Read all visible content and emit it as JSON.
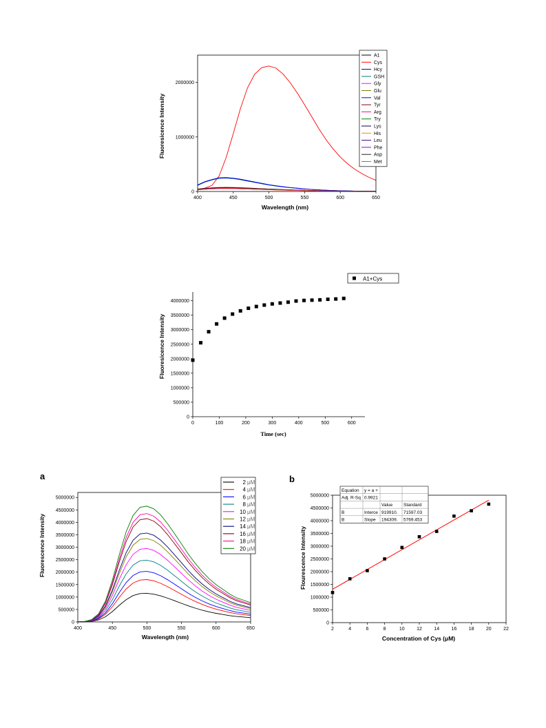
{
  "chart_data": [
    {
      "type": "line",
      "xlabel": "Wavelength (nm)",
      "ylabel": "Fluoresicence Intensity",
      "xlim": [
        400,
        650
      ],
      "ylim": [
        0,
        2500000
      ],
      "xticks": [
        "400",
        "450",
        "500",
        "550",
        "600",
        "650"
      ],
      "yticks": [
        "0",
        "1000000",
        "2000000"
      ],
      "legend_position": "top-right",
      "x": [
        400,
        410,
        420,
        430,
        440,
        450,
        460,
        470,
        480,
        490,
        500,
        510,
        520,
        530,
        540,
        550,
        560,
        570,
        580,
        590,
        600,
        610,
        620,
        630,
        640,
        650
      ],
      "series": [
        {
          "name": "A1",
          "color": "#000000",
          "values": [
            40000,
            50000,
            60000,
            65000,
            68000,
            66000,
            62000,
            57000,
            52000,
            47000,
            42000,
            37000,
            32000,
            28000,
            24000,
            20000,
            17000,
            14000,
            12000,
            10000,
            8000,
            6000,
            5000,
            4000,
            3000,
            2000
          ]
        },
        {
          "name": "Cys",
          "color": "#ff0000",
          "values": [
            40000,
            60000,
            110000,
            280000,
            620000,
            1060000,
            1520000,
            1900000,
            2150000,
            2270000,
            2300000,
            2260000,
            2150000,
            1990000,
            1800000,
            1590000,
            1370000,
            1150000,
            950000,
            780000,
            630000,
            510000,
            410000,
            330000,
            260000,
            205000
          ]
        },
        {
          "name": "Hcy",
          "color": "#000080",
          "values": [
            120000,
            180000,
            220000,
            250000,
            255000,
            245000,
            225000,
            200000,
            175000,
            150000,
            125000,
            105000,
            88000,
            72000,
            60000,
            48000,
            38000,
            30000,
            24000,
            18000,
            14000,
            11000,
            8000,
            6000,
            4000,
            3000
          ]
        },
        {
          "name": "GSH",
          "color": "#008080",
          "values": [
            110000,
            170000,
            210000,
            240000,
            245000,
            235000,
            215000,
            190000,
            165000,
            140000,
            118000,
            98000,
            82000,
            68000,
            56000,
            45000,
            36000,
            28000,
            22000,
            17000,
            13000,
            10000,
            7000,
            5000,
            4000,
            3000
          ]
        },
        {
          "name": "Gly",
          "color": "#ff00ff",
          "values": [
            30000,
            40000,
            48000,
            52000,
            54000,
            52000,
            49000,
            45000,
            41000,
            37000,
            33000,
            29000,
            25000,
            22000,
            19000,
            16000,
            13000,
            11000,
            9000,
            7000,
            6000,
            5000,
            4000,
            3000,
            2000,
            1500
          ]
        },
        {
          "name": "Glu",
          "color": "#808000",
          "values": [
            28000,
            38000,
            46000,
            50000,
            52000,
            50000,
            47000,
            43000,
            39000,
            35000,
            31000,
            27000,
            24000,
            21000,
            18000,
            15000,
            12000,
            10000,
            8000,
            7000,
            6000,
            5000,
            4000,
            3000,
            2000,
            1500
          ]
        },
        {
          "name": "Val",
          "color": "#0000ff",
          "values": [
            115000,
            175000,
            215000,
            245000,
            250000,
            240000,
            220000,
            195000,
            170000,
            145000,
            121000,
            101000,
            85000,
            70000,
            58000,
            46000,
            37000,
            29000,
            23000,
            17500,
            13500,
            10500,
            7500,
            5500,
            4000,
            3000
          ]
        },
        {
          "name": "Tyr",
          "color": "#800000",
          "values": [
            45000,
            58000,
            68000,
            74000,
            76000,
            74000,
            70000,
            64000,
            58000,
            52000,
            46000,
            40000,
            35000,
            30000,
            26000,
            22000,
            18000,
            15000,
            12000,
            10000,
            8000,
            6500,
            5000,
            4000,
            3000,
            2000
          ]
        },
        {
          "name": "Arg",
          "color": "#ff0080",
          "values": [
            35000,
            45000,
            54000,
            58000,
            60000,
            58000,
            55000,
            50000,
            46000,
            41000,
            36000,
            32000,
            28000,
            24000,
            21000,
            18000,
            15000,
            12000,
            10000,
            8000,
            6500,
            5000,
            4000,
            3000,
            2000,
            1500
          ]
        },
        {
          "name": "Try",
          "color": "#008000",
          "values": [
            32000,
            42000,
            50000,
            55000,
            57000,
            55000,
            52000,
            48000,
            44000,
            39000,
            35000,
            31000,
            27000,
            23000,
            20000,
            17000,
            14000,
            12000,
            10000,
            8000,
            6500,
            5000,
            4000,
            3000,
            2000,
            1500
          ]
        },
        {
          "name": "Lys",
          "color": "#000040",
          "values": [
            38000,
            48000,
            57000,
            62000,
            64000,
            62000,
            58000,
            53000,
            48000,
            43000,
            38000,
            34000,
            30000,
            26000,
            22000,
            19000,
            16000,
            13000,
            11000,
            9000,
            7000,
            5500,
            4500,
            3500,
            2500,
            1800
          ]
        },
        {
          "name": "His",
          "color": "#ff8000",
          "values": [
            30000,
            40000,
            47000,
            51000,
            53000,
            51000,
            48000,
            44000,
            40000,
            36000,
            32000,
            28000,
            24000,
            21000,
            18000,
            15000,
            13000,
            11000,
            9000,
            7000,
            6000,
            5000,
            4000,
            3000,
            2000,
            1500
          ]
        },
        {
          "name": "Leu",
          "color": "#400080",
          "values": [
            36000,
            46000,
            55000,
            60000,
            62000,
            60000,
            56000,
            51000,
            47000,
            42000,
            37000,
            33000,
            29000,
            25000,
            21000,
            18000,
            15000,
            12500,
            10500,
            8500,
            7000,
            5500,
            4300,
            3300,
            2400,
            1700
          ]
        },
        {
          "name": "Phe",
          "color": "#8000ff",
          "values": [
            34000,
            44000,
            52000,
            57000,
            59000,
            57000,
            54000,
            49000,
            45000,
            40000,
            36000,
            32000,
            28000,
            24000,
            21000,
            18000,
            15000,
            12000,
            10000,
            8000,
            6500,
            5000,
            4000,
            3000,
            2000,
            1500
          ]
        },
        {
          "name": "Asp",
          "color": "#202020",
          "values": [
            42000,
            55000,
            64000,
            70000,
            72000,
            70000,
            66000,
            60000,
            55000,
            49000,
            44000,
            39000,
            34000,
            29000,
            25000,
            21000,
            17000,
            14500,
            12000,
            9500,
            7500,
            6000,
            4800,
            3800,
            2800,
            2000
          ]
        },
        {
          "name": "Met",
          "color": "#ff4040",
          "values": [
            33000,
            43000,
            51000,
            56000,
            58000,
            56000,
            53000,
            49000,
            45000,
            40000,
            36000,
            32000,
            28000,
            24000,
            21000,
            18000,
            15000,
            12000,
            10000,
            8000,
            6500,
            5000,
            4000,
            3000,
            2000,
            1500
          ]
        }
      ]
    },
    {
      "type": "scatter",
      "xlabel": "Time (sec)",
      "ylabel": "Fluoresicence Intensity",
      "xlim": [
        0,
        650
      ],
      "ylim": [
        0,
        4300000
      ],
      "xticks": [
        "0",
        "100",
        "200",
        "300",
        "400",
        "500",
        "600"
      ],
      "yticks": [
        "0",
        "500000",
        "1000000",
        "1500000",
        "2000000",
        "2500000",
        "3000000",
        "3500000",
        "4000000"
      ],
      "legend_position": "top-right",
      "series": [
        {
          "name": "A1+Cys",
          "color": "#000000",
          "x": [
            0,
            30,
            60,
            90,
            120,
            150,
            180,
            210,
            240,
            270,
            300,
            330,
            360,
            390,
            420,
            450,
            480,
            510,
            540,
            570
          ],
          "values": [
            1950000,
            2550000,
            2930000,
            3200000,
            3400000,
            3540000,
            3650000,
            3740000,
            3800000,
            3850000,
            3890000,
            3920000,
            3950000,
            3990000,
            4010000,
            4020000,
            4030000,
            4050000,
            4060000,
            4080000
          ]
        }
      ]
    },
    {
      "type": "line",
      "panel_label": "a",
      "xlabel": "Wavelength (nm)",
      "ylabel": "Fluorescence Intensity",
      "xlim": [
        400,
        650
      ],
      "ylim": [
        0,
        5200000
      ],
      "xticks": [
        "400",
        "450",
        "500",
        "550",
        "600",
        "650"
      ],
      "yticks": [
        "0",
        "500000",
        "1000000",
        "1500000",
        "2000000",
        "2500000",
        "3000000",
        "3500000",
        "4000000",
        "4500000",
        "5000000"
      ],
      "legend_position": "top-right",
      "peak_wavelength": 500,
      "x": [
        400,
        410,
        420,
        430,
        440,
        450,
        460,
        470,
        480,
        490,
        500,
        510,
        520,
        530,
        540,
        550,
        560,
        570,
        580,
        590,
        600,
        610,
        620,
        630,
        640,
        650
      ],
      "profile": [
        0.0,
        0.004,
        0.02,
        0.07,
        0.18,
        0.36,
        0.58,
        0.78,
        0.92,
        0.99,
        1.0,
        0.97,
        0.91,
        0.83,
        0.74,
        0.65,
        0.56,
        0.48,
        0.41,
        0.35,
        0.3,
        0.26,
        0.22,
        0.19,
        0.17,
        0.15
      ],
      "series": [
        {
          "name": "2",
          "unit": "μM",
          "color": "#000000",
          "peak": 1150000
        },
        {
          "name": "4",
          "unit": "μM",
          "color": "#ff0000",
          "peak": 1700000
        },
        {
          "name": "6",
          "unit": "μM",
          "color": "#0000ff",
          "peak": 2030000
        },
        {
          "name": "8",
          "unit": "μM",
          "color": "#008080",
          "peak": 2480000
        },
        {
          "name": "10",
          "unit": "μM",
          "color": "#ff00ff",
          "peak": 2950000
        },
        {
          "name": "12",
          "unit": "μM",
          "color": "#808000",
          "peak": 3350000
        },
        {
          "name": "14",
          "unit": "μM",
          "color": "#000080",
          "peak": 3570000
        },
        {
          "name": "16",
          "unit": "μM",
          "color": "#800000",
          "peak": 4150000
        },
        {
          "name": "18",
          "unit": "μM",
          "color": "#ff00aa",
          "peak": 4350000
        },
        {
          "name": "20",
          "unit": "μM",
          "color": "#008000",
          "peak": 4650000
        }
      ]
    },
    {
      "type": "scatter",
      "panel_label": "b",
      "xlabel": "Concentration of Cys (μM)",
      "ylabel": "Flourescence Intensity",
      "xlim": [
        2,
        22
      ],
      "ylim": [
        0,
        5000000
      ],
      "xticks": [
        "2",
        "4",
        "6",
        "8",
        "10",
        "12",
        "14",
        "16",
        "18",
        "20",
        "22"
      ],
      "yticks": [
        "0",
        "500000",
        "1000000",
        "1500000",
        "2000000",
        "2500000",
        "3000000",
        "3500000",
        "4000000",
        "4500000",
        "5000000"
      ],
      "x": [
        2,
        4,
        6,
        8,
        10,
        12,
        14,
        16,
        18,
        20
      ],
      "values": [
        1180000,
        1720000,
        2040000,
        2500000,
        2950000,
        3370000,
        3580000,
        4180000,
        4390000,
        4650000
      ],
      "fit": {
        "intercept": 919910,
        "slope": 194309,
        "color": "#ff0000"
      },
      "table": [
        [
          "Equation",
          "y = a +",
          "",
          ""
        ],
        [
          "Adj. R-Sq",
          "0.9921",
          "",
          ""
        ],
        [
          "",
          "",
          "Value",
          "Standard"
        ],
        [
          "B",
          "Interce",
          "919910.",
          "71597.03"
        ],
        [
          "B",
          "Slope",
          "194309.",
          "5769.453"
        ]
      ]
    }
  ]
}
